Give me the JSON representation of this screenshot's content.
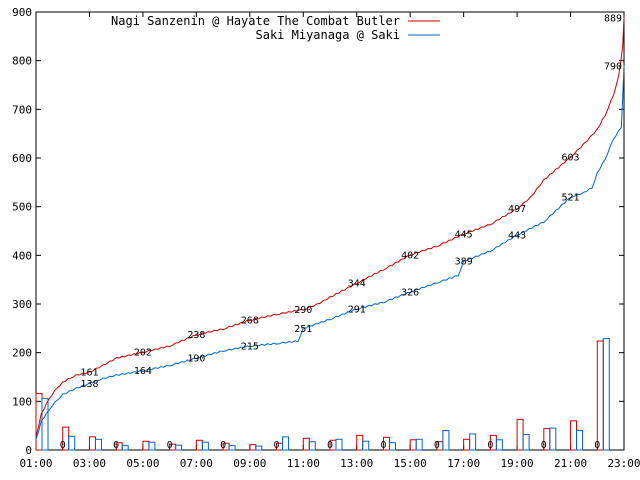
{
  "chart_data": {
    "type": "line",
    "x_ticks": [
      "01:00",
      "03:00",
      "05:00",
      "07:00",
      "09:00",
      "11:00",
      "13:00",
      "15:00",
      "17:00",
      "19:00",
      "21:00",
      "23:00"
    ],
    "y_ticks": [
      "0",
      "100",
      "200",
      "300",
      "400",
      "500",
      "600",
      "700",
      "800",
      "900"
    ],
    "ylim": [
      0,
      900
    ],
    "xlim_hours": [
      1,
      23
    ],
    "grid": false,
    "legend_position": "top",
    "series": [
      {
        "name": "Nagi Sanzenin @ Hayate The Combat Butler",
        "color": "#cc0000",
        "points": [
          [
            1.0,
            28
          ],
          [
            1.2,
            75
          ],
          [
            1.5,
            108
          ],
          [
            1.8,
            130
          ],
          [
            2.0,
            140
          ],
          [
            2.3,
            150
          ],
          [
            2.5,
            155
          ],
          [
            3.0,
            161
          ],
          [
            3.5,
            175
          ],
          [
            4.0,
            190
          ],
          [
            5.0,
            202
          ],
          [
            6.0,
            215
          ],
          [
            7.0,
            238
          ],
          [
            8.0,
            250
          ],
          [
            9.0,
            268
          ],
          [
            10.0,
            280
          ],
          [
            11.0,
            290
          ],
          [
            11.5,
            300
          ],
          [
            12.0,
            315
          ],
          [
            13.0,
            344
          ],
          [
            14.0,
            372
          ],
          [
            15.0,
            402
          ],
          [
            16.0,
            420
          ],
          [
            17.0,
            445
          ],
          [
            18.0,
            465
          ],
          [
            19.0,
            497
          ],
          [
            19.5,
            520
          ],
          [
            20.0,
            556
          ],
          [
            21.0,
            603
          ],
          [
            21.5,
            630
          ],
          [
            22.0,
            660
          ],
          [
            22.3,
            690
          ],
          [
            22.6,
            730
          ],
          [
            22.8,
            770
          ],
          [
            22.95,
            830
          ],
          [
            23.0,
            889
          ]
        ],
        "labels": [
          [
            3.0,
            161
          ],
          [
            5.0,
            202
          ],
          [
            7.0,
            238
          ],
          [
            9.0,
            268
          ],
          [
            11.0,
            290
          ],
          [
            13.0,
            344
          ],
          [
            15.0,
            402
          ],
          [
            17.0,
            445
          ],
          [
            19.0,
            497
          ],
          [
            21.0,
            603
          ],
          [
            23.0,
            889
          ]
        ]
      },
      {
        "name": "Saki Miyanaga @ Saki",
        "color": "#0066cc",
        "points": [
          [
            1.0,
            22
          ],
          [
            1.2,
            60
          ],
          [
            1.5,
            85
          ],
          [
            1.8,
            105
          ],
          [
            2.0,
            115
          ],
          [
            2.5,
            128
          ],
          [
            3.0,
            138
          ],
          [
            3.5,
            148
          ],
          [
            4.0,
            155
          ],
          [
            5.0,
            164
          ],
          [
            6.0,
            175
          ],
          [
            7.0,
            190
          ],
          [
            8.0,
            205
          ],
          [
            9.0,
            215
          ],
          [
            10.0,
            220
          ],
          [
            10.8,
            225
          ],
          [
            11.0,
            251
          ],
          [
            12.0,
            270
          ],
          [
            13.0,
            291
          ],
          [
            14.0,
            305
          ],
          [
            15.0,
            326
          ],
          [
            16.0,
            345
          ],
          [
            16.8,
            360
          ],
          [
            17.0,
            389
          ],
          [
            18.0,
            410
          ],
          [
            19.0,
            443
          ],
          [
            20.0,
            470
          ],
          [
            21.0,
            521
          ],
          [
            21.5,
            530
          ],
          [
            21.8,
            540
          ],
          [
            22.0,
            570
          ],
          [
            22.3,
            600
          ],
          [
            22.6,
            640
          ],
          [
            22.9,
            665
          ],
          [
            23.0,
            790
          ]
        ],
        "labels": [
          [
            3.0,
            138
          ],
          [
            5.0,
            164
          ],
          [
            7.0,
            190
          ],
          [
            9.0,
            215
          ],
          [
            11.0,
            251
          ],
          [
            13.0,
            291
          ],
          [
            15.0,
            326
          ],
          [
            17.0,
            389
          ],
          [
            19.0,
            443
          ],
          [
            21.0,
            521
          ],
          [
            23.0,
            790
          ]
        ]
      }
    ],
    "hourly_bars": {
      "hours": [
        1,
        2,
        3,
        4,
        5,
        6,
        7,
        8,
        9,
        10,
        11,
        12,
        13,
        14,
        15,
        16,
        17,
        18,
        19,
        20,
        21,
        22
      ],
      "series1": [
        116,
        47,
        27,
        15,
        18,
        12,
        20,
        14,
        11,
        14,
        24,
        20,
        30,
        26,
        21,
        17,
        22,
        30,
        63,
        44,
        60,
        224
      ],
      "series2": [
        106,
        28,
        22,
        9,
        16,
        10,
        16,
        9,
        8,
        27,
        17,
        22,
        18,
        15,
        22,
        40,
        33,
        21,
        32,
        45,
        40,
        229
      ],
      "zero_labels": [
        "0",
        "0",
        "0",
        "0",
        "0",
        "0",
        "0",
        "0",
        "0",
        "0",
        "0"
      ]
    }
  }
}
